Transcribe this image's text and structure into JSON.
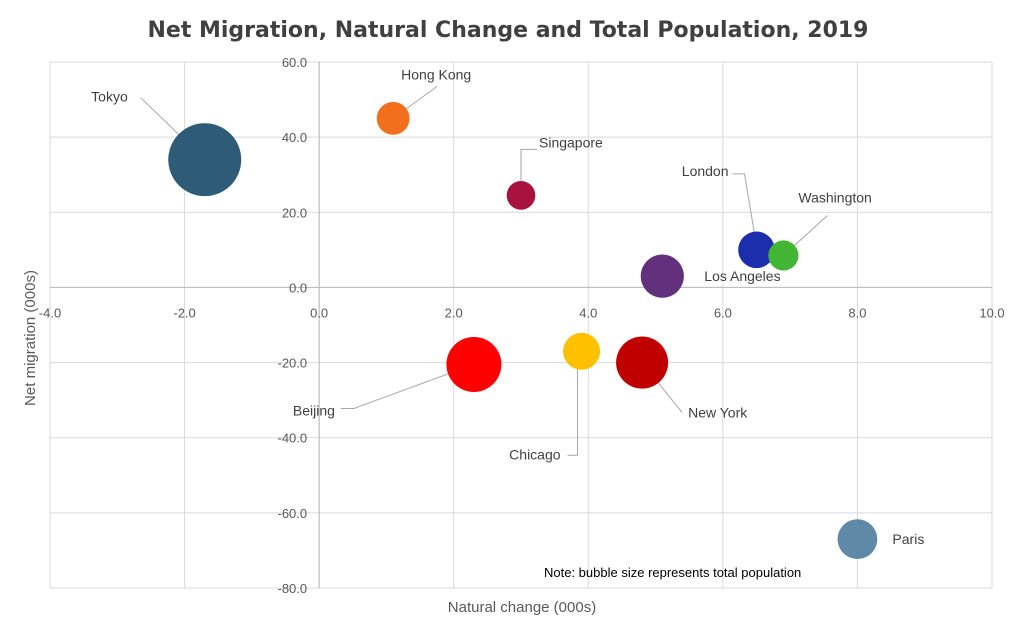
{
  "chart_data": {
    "type": "bubble",
    "title": "Net Migration, Natural Change and Total Population, 2019",
    "xlabel": "Natural change (000s)",
    "ylabel": "Net migration (000s)",
    "xlim": [
      -4.0,
      10.0
    ],
    "ylim": [
      -80.0,
      60.0
    ],
    "x_ticks": [
      "-4.0",
      "-2.0",
      "0.0",
      "2.0",
      "4.0",
      "6.0",
      "8.0",
      "10.0"
    ],
    "y_ticks": [
      "60.0",
      "40.0",
      "20.0",
      "0.0",
      "-20.0",
      "-40.0",
      "-60.0",
      "-80.0"
    ],
    "grid": true,
    "note": "Note: bubble size represents total population",
    "points": [
      {
        "label": "Tokyo",
        "x": -1.7,
        "y": 34,
        "size": 37,
        "color": "#2e5c78"
      },
      {
        "label": "Hong Kong",
        "x": 1.1,
        "y": 45,
        "size": 7.5,
        "color": "#f26f1e"
      },
      {
        "label": "Singapore",
        "x": 3.0,
        "y": 24.5,
        "size": 5.7,
        "color": "#a8123e"
      },
      {
        "label": "London",
        "x": 6.5,
        "y": 10,
        "size": 9.3,
        "color": "#1c2eab"
      },
      {
        "label": "Washington",
        "x": 6.9,
        "y": 8.5,
        "size": 6.3,
        "color": "#43b534"
      },
      {
        "label": "Los Angeles",
        "x": 5.1,
        "y": 3,
        "size": 13,
        "color": "#62307c"
      },
      {
        "label": "Beijing",
        "x": 2.3,
        "y": -20.5,
        "size": 21,
        "color": "#ff0000"
      },
      {
        "label": "Chicago",
        "x": 3.9,
        "y": -17,
        "size": 9.5,
        "color": "#ffc000"
      },
      {
        "label": "New York",
        "x": 4.8,
        "y": -20,
        "size": 18.8,
        "color": "#c00000"
      },
      {
        "label": "Paris",
        "x": 8.0,
        "y": -67,
        "size": 11,
        "color": "#5e8aa8"
      }
    ]
  }
}
